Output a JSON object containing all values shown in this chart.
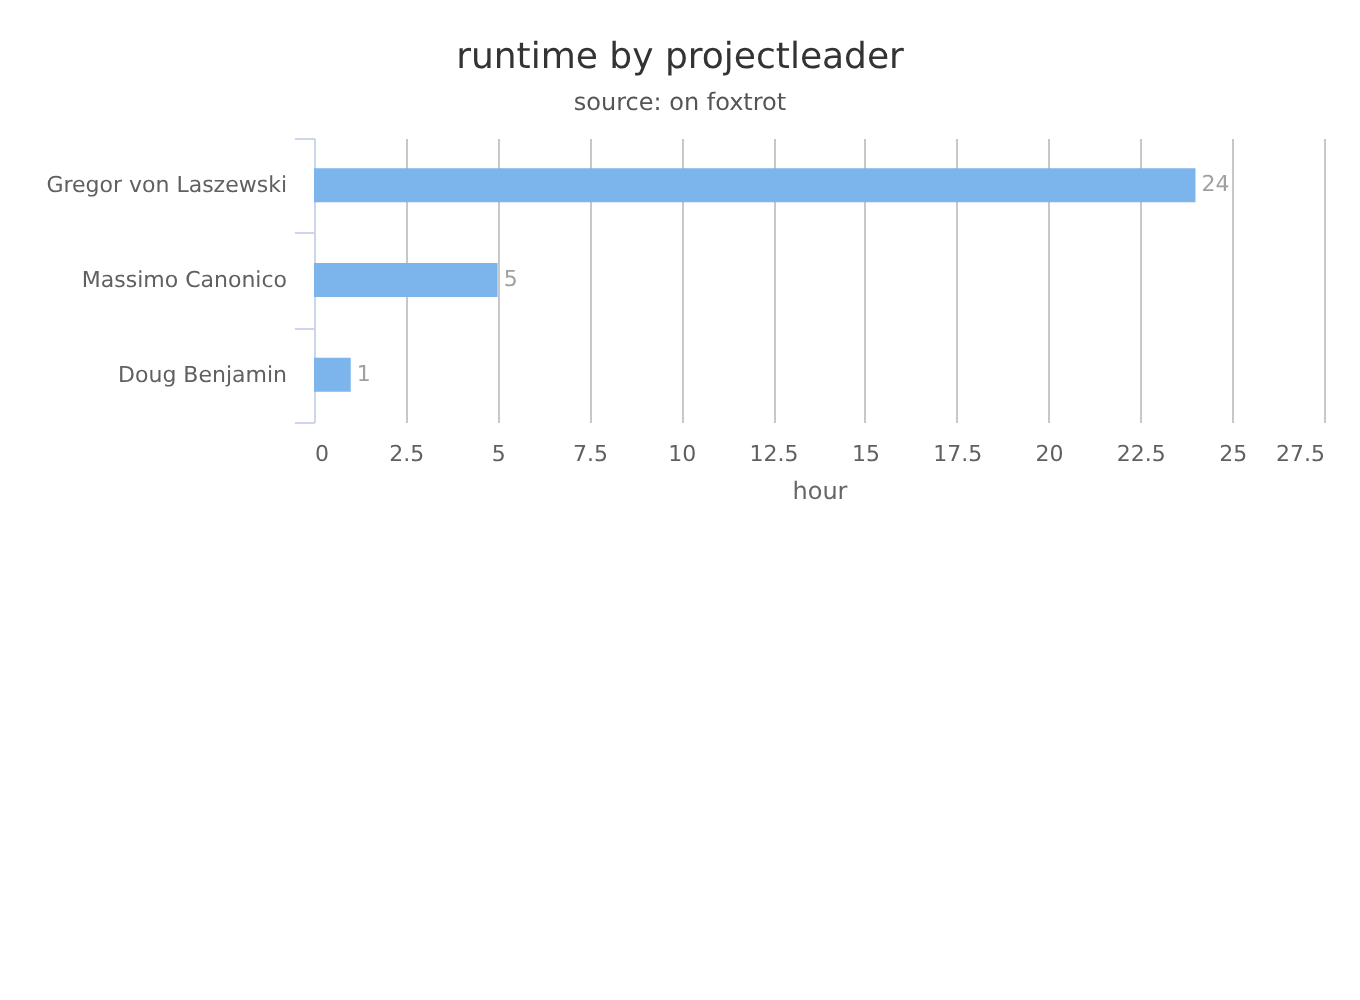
{
  "chart_data": {
    "type": "bar",
    "orientation": "horizontal",
    "title": "runtime by projectleader",
    "subtitle": "source: on foxtrot",
    "xlabel": "hour",
    "categories": [
      "Gregor von Laszewski",
      "Massimo Canonico",
      "Doug Benjamin"
    ],
    "values": [
      24,
      5,
      1
    ],
    "color": "#7cb5ec",
    "xlim": [
      0,
      27.5
    ],
    "xticks": [
      0,
      2.5,
      5,
      7.5,
      10,
      12.5,
      15,
      17.5,
      20,
      22.5,
      25,
      27.5
    ],
    "grid": "x",
    "data_labels": true
  }
}
